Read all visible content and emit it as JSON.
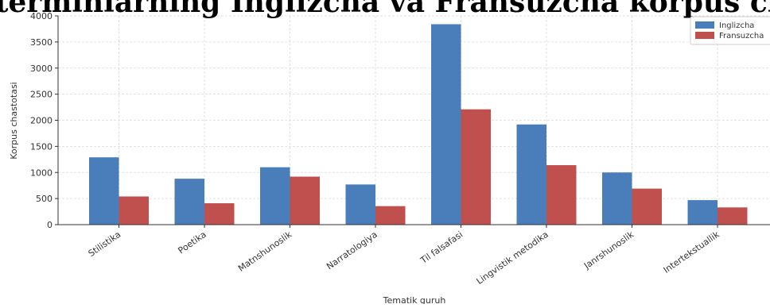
{
  "chart_data": {
    "type": "bar",
    "title": "Tematik terminlarning Inglizcha va Fransuzcha korpus chastotasi",
    "xlabel": "Tematik guruh",
    "ylabel": "Korpus chastotasi",
    "categories": [
      "Stilistika",
      "Poetika",
      "Matnshunoslik",
      "Narratologiya",
      "Til falsafasi",
      "Lingvistik metodika",
      "Janrshunoslik",
      "Intertekstuallik"
    ],
    "series": [
      {
        "name": "Inglizcha",
        "color": "#4a7ebb",
        "values": [
          1290,
          880,
          1100,
          770,
          3840,
          1920,
          1000,
          470
        ]
      },
      {
        "name": "Fransuzcha",
        "color": "#c0504d",
        "values": [
          540,
          410,
          920,
          355,
          2210,
          1140,
          690,
          330
        ]
      }
    ],
    "ylim": [
      0,
      4000
    ],
    "yticks": [
      0,
      500,
      1000,
      1500,
      2000,
      2500,
      3000,
      3500,
      4000
    ],
    "grid": true,
    "legend_position": "top-right"
  }
}
